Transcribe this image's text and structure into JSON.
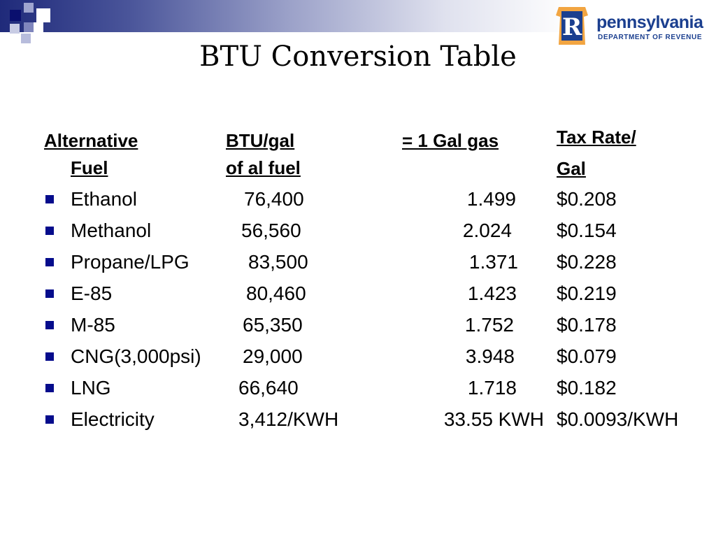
{
  "slide": {
    "title": "BTU Conversion Table"
  },
  "logo": {
    "name": "pennsylvania",
    "subtitle": "DEPARTMENT OF REVENUE",
    "emblem_letter": "R",
    "colors": {
      "blue": "#1b3f8f",
      "gold": "#f2a541"
    }
  },
  "table": {
    "headers": {
      "fuel": [
        "Alternative ",
        "Fuel"
      ],
      "btu": [
        "BTU/gal",
        "of al fuel"
      ],
      "equiv": [
        "= 1 Gal gas"
      ],
      "tax": [
        "Tax Rate/",
        "Gal"
      ]
    },
    "rows": [
      {
        "fuel": "Ethanol",
        "btu": "76,400",
        "equiv": "1.499",
        "tax": "$0.208"
      },
      {
        "fuel": "Methanol",
        "btu": "56,560",
        "equiv": "2.024",
        "tax": "$0.154"
      },
      {
        "fuel": "Propane/LPG",
        "btu": "83,500",
        "equiv": "1.371",
        "tax": "$0.228"
      },
      {
        "fuel": "E-85",
        "btu": "80,460",
        "equiv": "1.423",
        "tax": "$0.219"
      },
      {
        "fuel": "M-85",
        "btu": "65,350",
        "equiv": "1.752",
        "tax": "$0.178"
      },
      {
        "fuel": "CNG(3,000psi)",
        "btu": "29,000",
        "equiv": "3.948",
        "tax": "$0.079"
      },
      {
        "fuel": "LNG",
        "btu": "66,640",
        "equiv": "1.718",
        "tax": "$0.182"
      },
      {
        "fuel": "Electricity",
        "btu": "3,412/KWH",
        "equiv": "33.55 KWH",
        "tax": "$0.0093/KWH"
      }
    ]
  },
  "colors": {
    "bullet": "#050c8c",
    "band_dark": "#1f2a7a"
  }
}
